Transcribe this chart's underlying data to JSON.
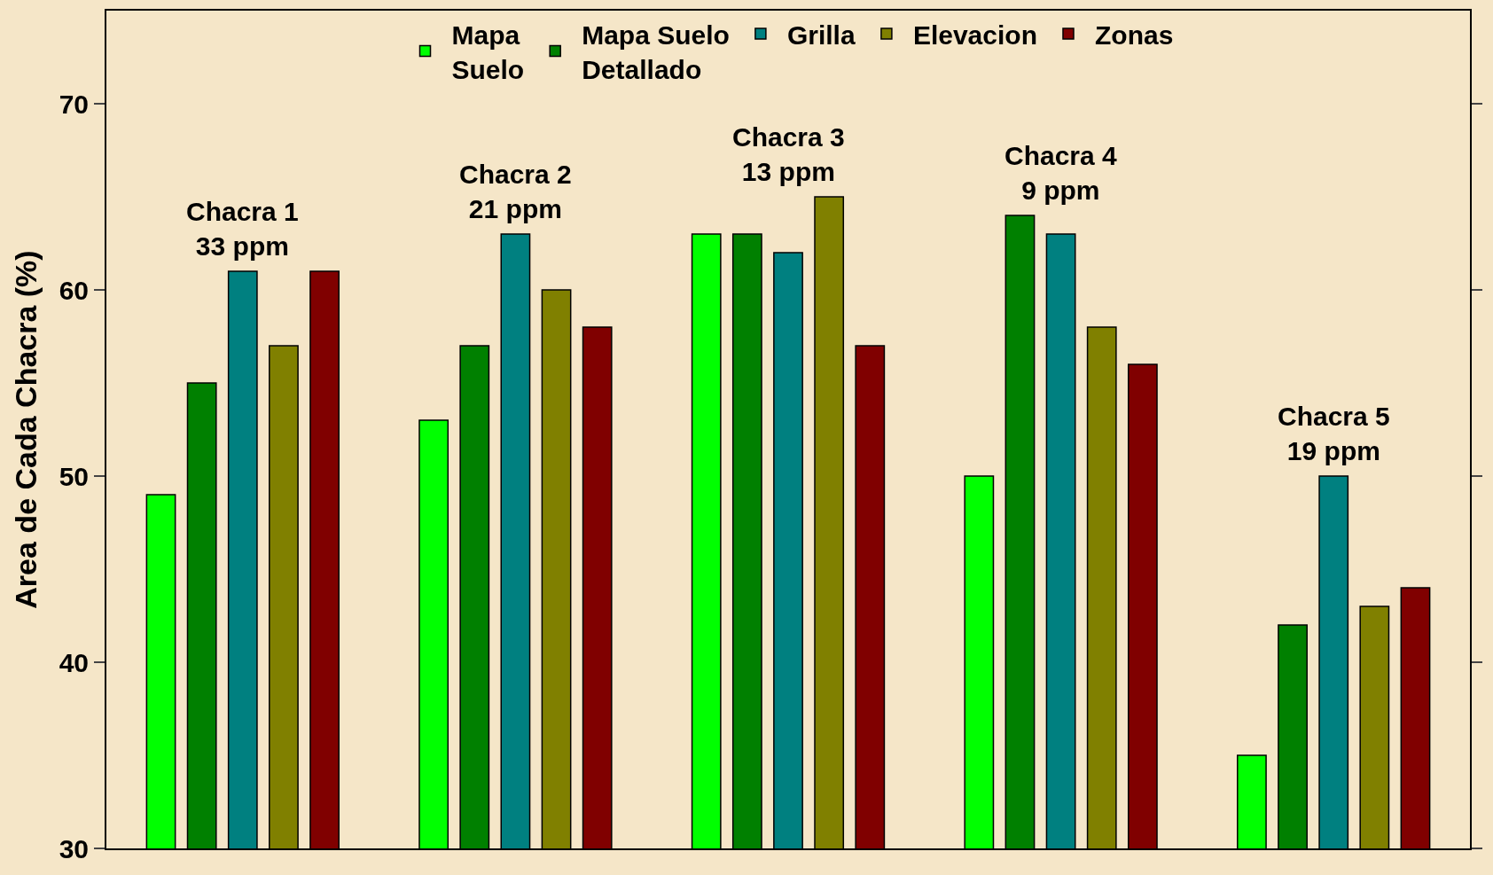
{
  "chart_data": {
    "type": "bar",
    "ylabel": "Area de Cada Chacra (%)",
    "categories": [
      null,
      null,
      null,
      null,
      null
    ],
    "series": [
      {
        "name": "Mapa\nSuelo",
        "color": "#00ff00",
        "values": [
          49,
          53,
          63,
          50,
          35
        ]
      },
      {
        "name": "Mapa Suelo\nDetallado",
        "color": "#008000",
        "values": [
          55,
          57,
          63,
          64,
          42
        ]
      },
      {
        "name": "Grilla",
        "color": "#008080",
        "values": [
          61,
          63,
          62,
          63,
          50
        ]
      },
      {
        "name": "Elevacion",
        "color": "#808000",
        "values": [
          57,
          60,
          65,
          58,
          43
        ]
      },
      {
        "name": "Zonas",
        "color": "#800000",
        "values": [
          61,
          58,
          57,
          56,
          44
        ]
      }
    ],
    "annotations": [
      "Chacra 1\n33 ppm",
      "Chacra 2\n21 ppm",
      "Chacra 3\n13 ppm",
      "Chacra 4\n9 ppm",
      "Chacra 5\n19 ppm"
    ],
    "ylim": [
      30,
      75
    ],
    "yticks": [
      30,
      40,
      50,
      60,
      70
    ],
    "grid": false,
    "legend": "top"
  }
}
